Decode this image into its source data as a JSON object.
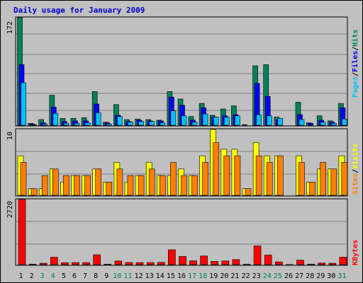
{
  "title": "Daily usage for January 2009",
  "colors": {
    "hits": "#00805c",
    "files": "#0000ff",
    "pages": "#00c0ff",
    "visits": "#ffff00",
    "sites": "#ff8000",
    "kbytes": "#ff0000",
    "weekday": "#000000",
    "weekend": "#00805c",
    "panel": "#c0c0c0",
    "grid": "#808080",
    "separator": "#000000"
  },
  "chart_data": [
    {
      "type": "bar",
      "name": "hits-files-pages",
      "categories": [
        "1",
        "2",
        "3",
        "4",
        "5",
        "6",
        "7",
        "8",
        "9",
        "10",
        "11",
        "12",
        "13",
        "14",
        "15",
        "16",
        "17",
        "18",
        "19",
        "20",
        "21",
        "22",
        "23",
        "24",
        "25",
        "26",
        "27",
        "28",
        "29",
        "30",
        "31"
      ],
      "weekend_days": [
        "3",
        "4",
        "10",
        "11",
        "17",
        "18",
        "24",
        "25",
        "31"
      ],
      "ymax": 172,
      "ytick_label": "172",
      "series": [
        {
          "name": "Hits",
          "values": [
            172,
            3,
            9,
            48,
            11,
            11,
            12,
            54,
            5,
            33,
            9,
            10,
            9,
            8,
            54,
            42,
            14,
            35,
            16,
            26,
            31,
            1,
            95,
            97,
            13,
            0,
            37,
            4,
            15,
            7,
            35
          ]
        },
        {
          "name": "Files",
          "values": [
            97,
            2,
            4,
            29,
            6,
            7,
            7,
            34,
            4,
            16,
            6,
            8,
            7,
            7,
            45,
            32,
            8,
            28,
            13,
            15,
            17,
            0,
            67,
            46,
            9,
            0,
            17,
            3,
            8,
            5,
            28
          ]
        },
        {
          "name": "Pages",
          "values": [
            68,
            1,
            2,
            19,
            3,
            3,
            4,
            20,
            2,
            14,
            5,
            6,
            6,
            4,
            23,
            15,
            5,
            18,
            13,
            13,
            15,
            0,
            17,
            15,
            11,
            0,
            9,
            0,
            5,
            3,
            10
          ]
        }
      ],
      "legend": [
        "Pages",
        "Files",
        "Hits"
      ]
    },
    {
      "type": "bar",
      "name": "visits-sites",
      "categories": [
        "1",
        "2",
        "3",
        "4",
        "5",
        "6",
        "7",
        "8",
        "9",
        "10",
        "11",
        "12",
        "13",
        "14",
        "15",
        "16",
        "17",
        "18",
        "19",
        "20",
        "21",
        "22",
        "23",
        "24",
        "25",
        "26",
        "27",
        "28",
        "29",
        "30",
        "31"
      ],
      "ymax": 10,
      "ytick_label": "10",
      "series": [
        {
          "name": "Visits",
          "values": [
            6,
            1,
            1,
            4,
            2,
            3,
            3,
            4,
            2,
            5,
            2,
            3,
            5,
            3,
            3,
            4,
            3,
            6,
            10,
            7,
            7,
            1,
            8,
            6,
            6,
            0,
            6,
            2,
            4,
            4,
            6
          ]
        },
        {
          "name": "Sites",
          "values": [
            5,
            1,
            3,
            4,
            3,
            3,
            3,
            4,
            2,
            4,
            3,
            3,
            4,
            3,
            5,
            3,
            3,
            5,
            8,
            6,
            6,
            1,
            6,
            5,
            6,
            0,
            5,
            2,
            5,
            4,
            5
          ]
        }
      ],
      "legend": [
        "Sites",
        "Visits"
      ]
    },
    {
      "type": "bar",
      "name": "kbytes",
      "categories": [
        "1",
        "2",
        "3",
        "4",
        "5",
        "6",
        "7",
        "8",
        "9",
        "10",
        "11",
        "12",
        "13",
        "14",
        "15",
        "16",
        "17",
        "18",
        "19",
        "20",
        "21",
        "22",
        "23",
        "24",
        "25",
        "26",
        "27",
        "28",
        "29",
        "30",
        "31"
      ],
      "ymax": 2720,
      "ytick_label": "2720",
      "series": [
        {
          "name": "KBytes",
          "values": [
            2720,
            20,
            55,
            310,
            80,
            85,
            85,
            410,
            20,
            150,
            90,
            85,
            85,
            95,
            620,
            340,
            160,
            360,
            140,
            155,
            210,
            15,
            780,
            400,
            115,
            5,
            185,
            20,
            65,
            55,
            310
          ]
        }
      ],
      "legend": [
        "KBytes"
      ]
    }
  ]
}
